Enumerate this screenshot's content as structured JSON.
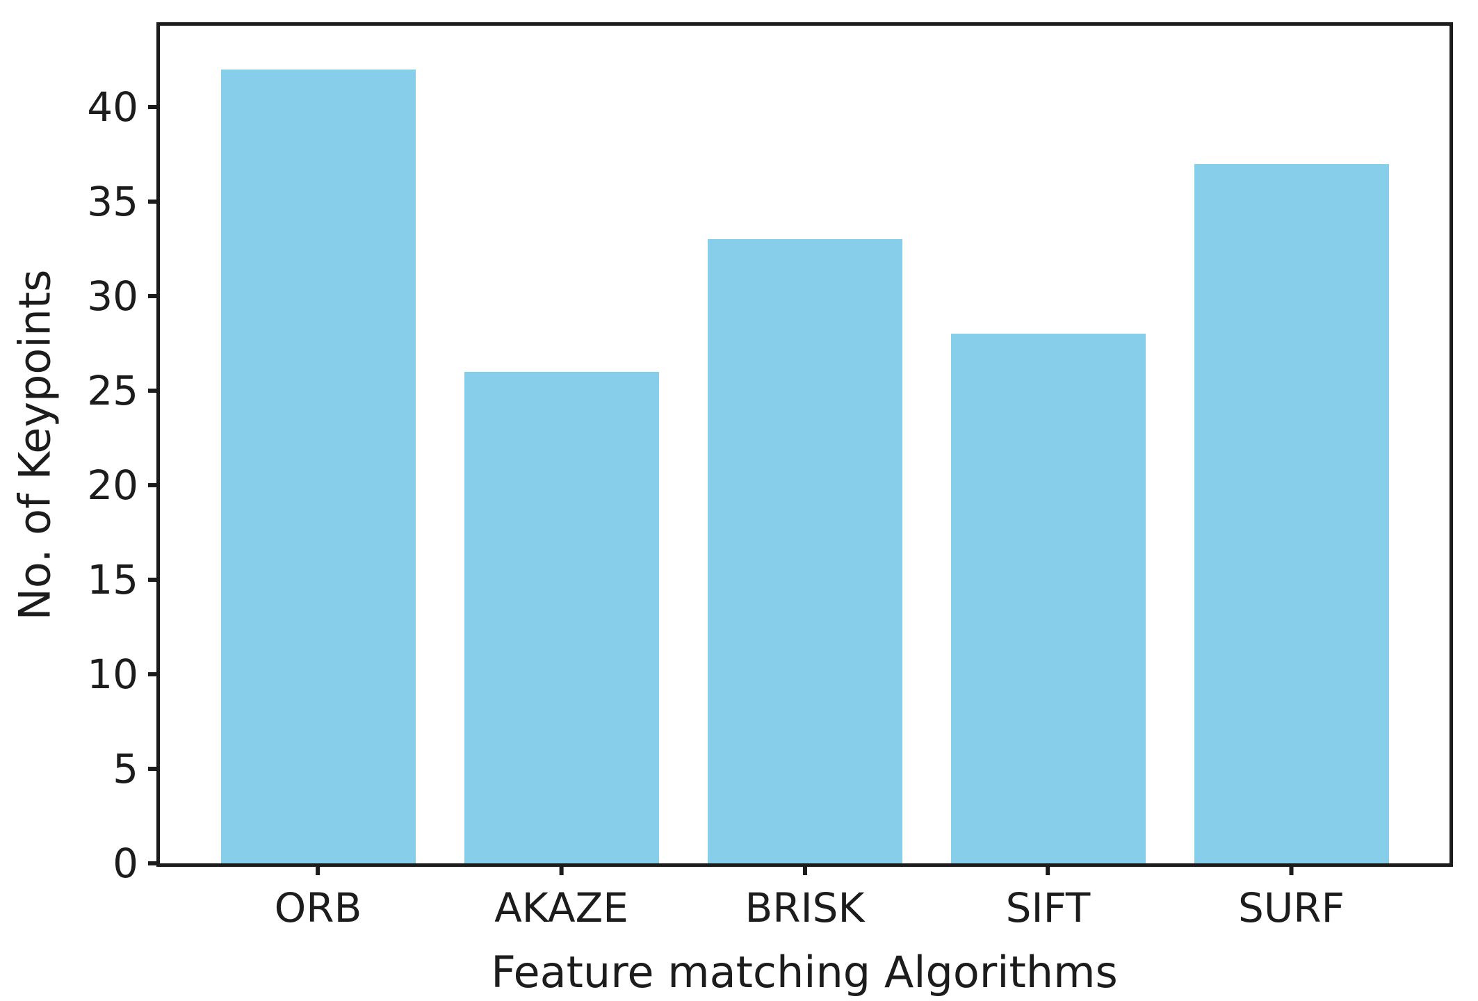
{
  "chart_data": {
    "type": "bar",
    "title": "",
    "categories": [
      "ORB",
      "AKAZE",
      "BRISK",
      "SIFT",
      "SURF"
    ],
    "values": [
      42,
      26,
      33,
      28,
      37
    ],
    "xlabel": "Feature matching Algorithms",
    "ylabel": "No. of Keypoints",
    "yticks": [
      0,
      5,
      10,
      15,
      20,
      25,
      30,
      35,
      40
    ],
    "ylim": [
      0,
      44.3
    ],
    "xlim_units": [
      -0.65,
      4.65
    ],
    "bar_width_units": 0.8,
    "bar_color": "#87CEEB",
    "axis_color": "#1c1c1c",
    "background_color": "#ffffff",
    "grid": false,
    "legend": false
  }
}
